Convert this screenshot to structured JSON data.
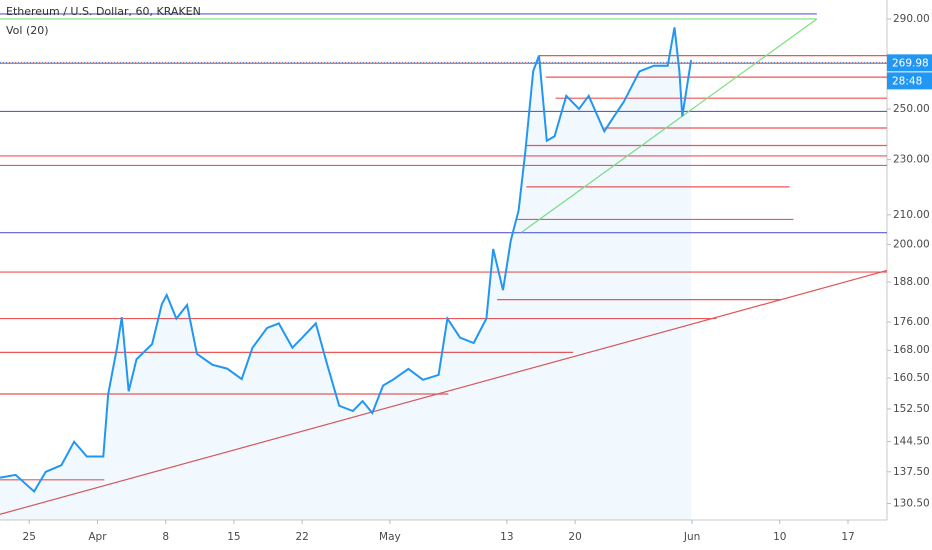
{
  "chart_data": {
    "type": "line",
    "title": "Ethereum / U.S. Dollar, 60, KRAKEN",
    "subtitle": "Vol (20)",
    "log_scale": true,
    "xlim": [
      0,
      91
    ],
    "ylim": [
      127,
      299.2
    ],
    "xticks": [
      {
        "value": 3,
        "label": "25"
      },
      {
        "value": 10,
        "label": "Apr"
      },
      {
        "value": 17,
        "label": "8"
      },
      {
        "value": 24,
        "label": "15"
      },
      {
        "value": 31,
        "label": "22"
      },
      {
        "value": 40,
        "label": "May"
      },
      {
        "value": 52,
        "label": "13"
      },
      {
        "value": 59,
        "label": "20"
      },
      {
        "value": 71,
        "label": "Jun"
      },
      {
        "value": 80,
        "label": "10"
      },
      {
        "value": 87,
        "label": "17"
      }
    ],
    "yticks": [
      {
        "value": 290,
        "label": "290.00"
      },
      {
        "value": 250,
        "label": "250.00"
      },
      {
        "value": 230,
        "label": "230.00"
      },
      {
        "value": 210,
        "label": "210.00"
      },
      {
        "value": 200,
        "label": "200.00"
      },
      {
        "value": 188,
        "label": "188.00"
      },
      {
        "value": 176,
        "label": "176.00"
      },
      {
        "value": 168,
        "label": "168.00"
      },
      {
        "value": 160.5,
        "label": "160.50"
      },
      {
        "value": 152.5,
        "label": "152.50"
      },
      {
        "value": 144.5,
        "label": "144.50"
      },
      {
        "value": 137.5,
        "label": "137.50"
      },
      {
        "value": 130.5,
        "label": "130.50"
      }
    ],
    "series": [
      {
        "color": "#2196f3",
        "x": [
          0,
          1.6,
          3.5,
          4.7,
          6.3,
          7.6,
          8.9,
          10.6,
          11.1,
          12,
          12.5,
          13.2,
          14,
          15.6,
          16.6,
          17.1,
          18.1,
          19.2,
          20.2,
          21.8,
          23.3,
          24.8,
          25.9,
          27.4,
          28.6,
          30,
          31,
          32.4,
          33.6,
          34.8,
          36.2,
          37.2,
          38.2,
          39.3,
          40.3,
          41.9,
          43.4,
          45,
          45.9,
          47.2,
          48.6,
          49.9,
          50.6,
          51.6,
          52.4,
          53.2,
          53.9,
          54.7,
          55.3,
          56.1,
          56.9,
          58.1,
          59.4,
          60.4,
          62,
          63,
          64,
          65.6,
          67.1,
          68.5,
          69.2,
          69.7,
          70,
          70.9
        ],
        "values": [
          136.2,
          136.8,
          133.1,
          137.5,
          139,
          144.5,
          141,
          141,
          156.3,
          168.7,
          177.4,
          157,
          165.5,
          169.7,
          181.2,
          184,
          177,
          181,
          167,
          164,
          163,
          160.2,
          168.7,
          174.3,
          175.6,
          168.7,
          171.5,
          175.6,
          163.8,
          153.3,
          152,
          154.5,
          151.5,
          158.5,
          160,
          162.9,
          160,
          161.3,
          177,
          171.5,
          170,
          177,
          198.5,
          185.5,
          201.3,
          211.5,
          233.3,
          266.1,
          273,
          237.3,
          239,
          255.5,
          250,
          255.5,
          241,
          247,
          253,
          266,
          268.5,
          268.5,
          286,
          266,
          247,
          271
        ]
      }
    ],
    "last_price": 269.98,
    "countdown": "28:48",
    "levels": [
      {
        "value": 292.4,
        "from": 0,
        "to": 83.8,
        "color": "#5b5bd6"
      },
      {
        "value": 249,
        "from": 0,
        "to": 91,
        "color": "#5b5bd6"
      },
      {
        "value": 203.9,
        "from": 0,
        "to": 91,
        "color": "#5b5bd6"
      },
      {
        "value": 273,
        "from": 55.3,
        "to": 91,
        "color": "#f05454"
      },
      {
        "value": 269.6,
        "from": 0,
        "to": 91,
        "color": "#f05454"
      },
      {
        "value": 263.5,
        "from": 56,
        "to": 91,
        "color": "#f05454"
      },
      {
        "value": 254.5,
        "from": 57,
        "to": 91,
        "color": "#f05454"
      },
      {
        "value": 242.3,
        "from": 62,
        "to": 91,
        "color": "#f05454"
      },
      {
        "value": 235.4,
        "from": 54,
        "to": 91,
        "color": "#f05454"
      },
      {
        "value": 231.4,
        "from": 0,
        "to": 91,
        "color": "#f05454"
      },
      {
        "value": 227.8,
        "from": 0,
        "to": 91,
        "color": "#f05454"
      },
      {
        "value": 219.9,
        "from": 54,
        "to": 81,
        "color": "#f05454"
      },
      {
        "value": 208.4,
        "from": 53,
        "to": 81.4,
        "color": "#f05454"
      },
      {
        "value": 191.1,
        "from": 0,
        "to": 91,
        "color": "#f05454"
      },
      {
        "value": 182.6,
        "from": 51,
        "to": 80.2,
        "color": "#f05454"
      },
      {
        "value": 177,
        "from": 0,
        "to": 73.5,
        "color": "#f05454"
      },
      {
        "value": 167.4,
        "from": 0,
        "to": 58.8,
        "color": "#f05454"
      },
      {
        "value": 156.3,
        "from": 0,
        "to": 46,
        "color": "#f05454"
      },
      {
        "value": 135.7,
        "from": 0,
        "to": 10.7,
        "color": "#f05454"
      }
    ],
    "trendlines": [
      {
        "x": [
          0,
          83.8
        ],
        "y": [
          290,
          290
        ],
        "color": "#7ee07e"
      },
      {
        "x": [
          53.5,
          83.8
        ],
        "y": [
          204,
          290
        ],
        "color": "#7ee07e"
      },
      {
        "x": [
          0,
          91
        ],
        "y": [
          128.2,
          191.6
        ],
        "color": "#e05555"
      }
    ]
  }
}
